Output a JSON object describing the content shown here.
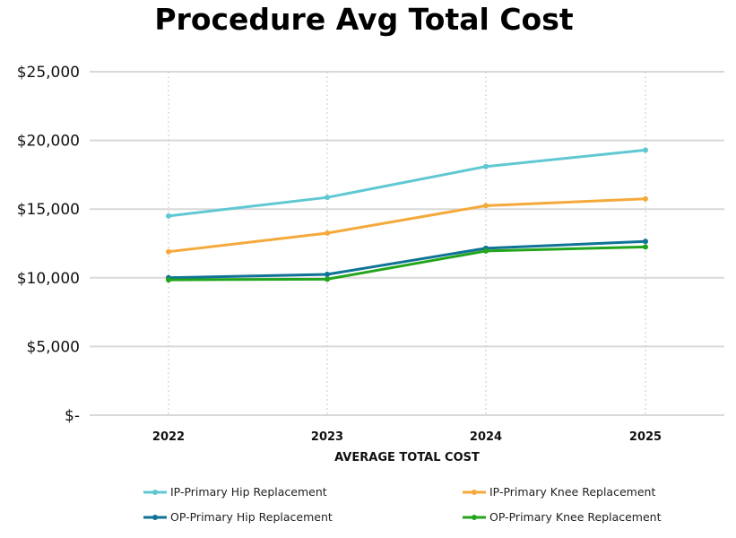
{
  "chart_data": {
    "type": "line",
    "title": "Procedure Avg Total Cost",
    "xlabel": "AVERAGE TOTAL COST",
    "ylabel": "",
    "categories": [
      "2022",
      "2023",
      "2024",
      "2025"
    ],
    "ylim": [
      0,
      25000
    ],
    "yticks": [
      0,
      5000,
      10000,
      15000,
      20000,
      25000
    ],
    "ytick_labels": [
      "$-",
      "$5,000",
      "$10,000",
      "$15,000",
      "$20,000",
      "$25,000"
    ],
    "grid": "horizontal solid, vertical dotted",
    "legend_position": "bottom",
    "series": [
      {
        "name": "IP-Primary Hip Replacement",
        "color": "#5fc8d2",
        "values": [
          14500,
          15850,
          18100,
          19300
        ]
      },
      {
        "name": "IP-Primary Knee Replacement",
        "color": "#f5a93b",
        "values": [
          11900,
          13250,
          15250,
          15750
        ]
      },
      {
        "name": "OP-Primary Hip Replacement",
        "color": "#0e7396",
        "values": [
          10000,
          10250,
          12150,
          12650
        ]
      },
      {
        "name": "OP-Primary Knee Replacement",
        "color": "#22a51c",
        "values": [
          9850,
          9900,
          11950,
          12250
        ]
      }
    ]
  }
}
